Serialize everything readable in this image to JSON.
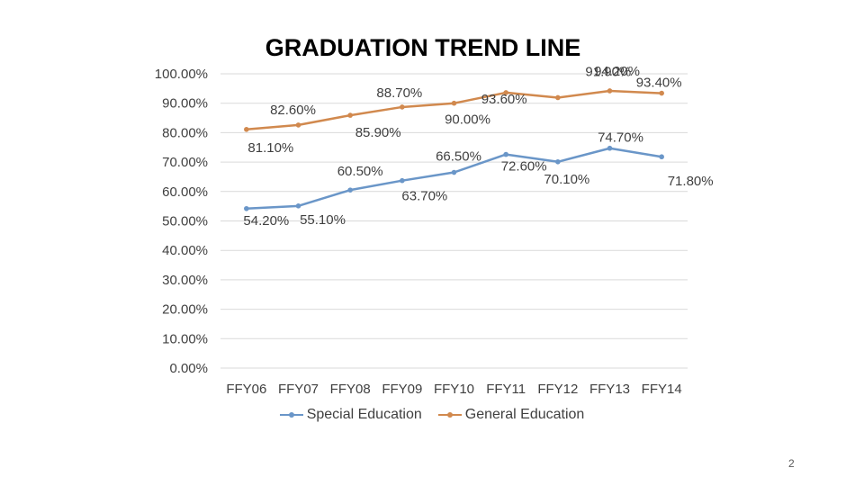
{
  "slide": {
    "title": "GRADUATION TREND LINE",
    "page_number": "2"
  },
  "colors": {
    "special_education": "#6A96C8",
    "general_education": "#D1894E",
    "gridline": "#D9D9D9",
    "tick_text": "#404040"
  },
  "chart_data": {
    "type": "line",
    "title": "",
    "xlabel": "",
    "ylabel": "",
    "categories": [
      "FFY06",
      "FFY07",
      "FFY08",
      "FFY09",
      "FFY10",
      "FFY11",
      "FFY12",
      "FFY13",
      "FFY14"
    ],
    "ylim": [
      0,
      100
    ],
    "yticks": [
      "0.00%",
      "10.00%",
      "20.00%",
      "30.00%",
      "40.00%",
      "50.00%",
      "60.00%",
      "70.00%",
      "80.00%",
      "90.00%",
      "100.00%"
    ],
    "grid": true,
    "legend_position": "bottom",
    "series": [
      {
        "name": "Special Education",
        "values": [
          54.2,
          55.1,
          60.5,
          63.7,
          66.5,
          72.6,
          70.1,
          74.7,
          71.8
        ],
        "labels": [
          "54.20%",
          "55.10%",
          "60.50%",
          "63.70%",
          "66.50%",
          "72.60%",
          "70.10%",
          "74.70%",
          "71.80%"
        ]
      },
      {
        "name": "General Education",
        "values": [
          81.1,
          82.6,
          85.9,
          88.7,
          90.0,
          93.6,
          91.9,
          94.2,
          93.4
        ],
        "labels": [
          "81.10%",
          "82.60%",
          "85.90%",
          "88.70%",
          "90.00%",
          "93.60%",
          "91.90%",
          "94.20%",
          "93.40%"
        ]
      }
    ]
  }
}
